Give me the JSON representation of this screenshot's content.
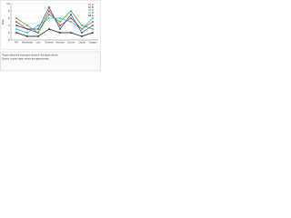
{
  "chart_data": {
    "type": "line",
    "y_label": "Rate",
    "categories": [
      "HIV",
      "Worldwide",
      "Low",
      "General",
      "Infection",
      "Cancer",
      "Cardio",
      "Surgery"
    ],
    "series": [
      {
        "name": "A",
        "color": "#d62728",
        "values": [
          5,
          3,
          2,
          8,
          4,
          6,
          3,
          5
        ]
      },
      {
        "name": "B",
        "color": "#1f3f8f",
        "values": [
          4,
          3,
          3,
          9,
          3,
          7,
          2,
          4
        ]
      },
      {
        "name": "C",
        "color": "#2ca02c",
        "values": [
          6,
          4,
          2,
          7,
          5,
          8,
          4,
          3
        ]
      },
      {
        "name": "D",
        "color": "#17becf",
        "values": [
          3,
          2,
          4,
          6,
          6,
          5,
          3,
          6
        ]
      },
      {
        "name": "E",
        "color": "#111111",
        "values": [
          2,
          1,
          1,
          3,
          2,
          2,
          1,
          2
        ]
      }
    ],
    "ylim": [
      0,
      10
    ],
    "yticks": [
      0,
      2,
      4,
      6,
      8,
      10
    ],
    "grid": true,
    "notes": [
      "*Notes about the estimates shown in the figure above.",
      "Source: survey data; values are approximate."
    ]
  }
}
